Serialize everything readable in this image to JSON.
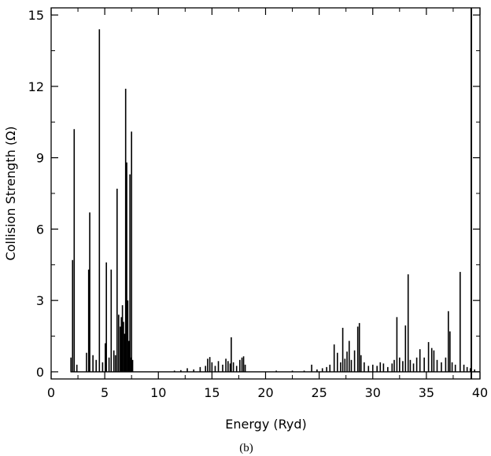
{
  "chart_data": {
    "type": "line",
    "xlabel": "Energy (Ryd)",
    "ylabel": "Collision Strength (Ω)",
    "caption": "(b)",
    "xlim": [
      0,
      40
    ],
    "ylim": [
      -0.3,
      15.3
    ],
    "xticks": [
      0,
      5,
      10,
      15,
      20,
      25,
      30,
      35,
      40
    ],
    "yticks": [
      0,
      3,
      6,
      9,
      12,
      15
    ],
    "grid": false,
    "series": [
      {
        "color": "#000000",
        "resonance_peaks": [
          [
            1.85,
            0.6
          ],
          [
            2.0,
            4.7
          ],
          [
            2.15,
            10.2
          ],
          [
            2.4,
            0.3
          ],
          [
            3.3,
            0.8
          ],
          [
            3.5,
            4.3
          ],
          [
            3.6,
            6.7
          ],
          [
            3.9,
            0.7
          ],
          [
            4.2,
            0.5
          ],
          [
            4.5,
            14.4
          ],
          [
            4.8,
            0.4
          ],
          [
            5.05,
            1.2
          ],
          [
            5.15,
            4.6
          ],
          [
            5.4,
            0.6
          ],
          [
            5.6,
            4.3
          ],
          [
            5.85,
            0.9
          ],
          [
            6.0,
            0.7
          ],
          [
            6.15,
            7.7
          ],
          [
            6.3,
            2.4
          ],
          [
            6.45,
            1.9
          ],
          [
            6.55,
            2.3
          ],
          [
            6.65,
            2.8
          ],
          [
            6.75,
            2.1
          ],
          [
            6.85,
            1.6
          ],
          [
            6.95,
            11.9
          ],
          [
            7.05,
            8.8
          ],
          [
            7.15,
            3.0
          ],
          [
            7.25,
            1.3
          ],
          [
            7.35,
            8.3
          ],
          [
            7.45,
            0.6
          ],
          [
            7.5,
            10.1
          ],
          [
            7.6,
            0.5
          ],
          [
            11.5,
            0.05
          ],
          [
            12.1,
            0.07
          ],
          [
            12.7,
            0.15
          ],
          [
            13.3,
            0.1
          ],
          [
            13.9,
            0.2
          ],
          [
            14.4,
            0.25
          ],
          [
            14.6,
            0.55
          ],
          [
            14.8,
            0.62
          ],
          [
            15.0,
            0.4
          ],
          [
            15.3,
            0.25
          ],
          [
            15.6,
            0.45
          ],
          [
            16.0,
            0.3
          ],
          [
            16.3,
            0.55
          ],
          [
            16.5,
            0.45
          ],
          [
            16.7,
            0.35
          ],
          [
            16.8,
            1.45
          ],
          [
            17.0,
            0.4
          ],
          [
            17.3,
            0.25
          ],
          [
            17.6,
            0.5
          ],
          [
            17.8,
            0.6
          ],
          [
            17.95,
            0.65
          ],
          [
            18.1,
            0.3
          ],
          [
            21.0,
            0.05
          ],
          [
            22.5,
            0.05
          ],
          [
            23.6,
            0.05
          ],
          [
            24.3,
            0.3
          ],
          [
            24.8,
            0.1
          ],
          [
            25.3,
            0.15
          ],
          [
            25.7,
            0.2
          ],
          [
            26.0,
            0.3
          ],
          [
            26.4,
            1.15
          ],
          [
            26.7,
            0.8
          ],
          [
            27.0,
            0.4
          ],
          [
            27.2,
            1.85
          ],
          [
            27.4,
            0.55
          ],
          [
            27.6,
            0.85
          ],
          [
            27.8,
            1.3
          ],
          [
            28.0,
            0.5
          ],
          [
            28.3,
            0.9
          ],
          [
            28.6,
            1.9
          ],
          [
            28.75,
            2.05
          ],
          [
            28.9,
            0.7
          ],
          [
            29.2,
            0.4
          ],
          [
            29.6,
            0.25
          ],
          [
            30.0,
            0.3
          ],
          [
            30.4,
            0.25
          ],
          [
            30.7,
            0.4
          ],
          [
            31.0,
            0.35
          ],
          [
            31.4,
            0.2
          ],
          [
            31.8,
            0.35
          ],
          [
            32.0,
            0.5
          ],
          [
            32.25,
            2.3
          ],
          [
            32.5,
            0.6
          ],
          [
            32.8,
            0.45
          ],
          [
            33.05,
            1.95
          ],
          [
            33.3,
            4.1
          ],
          [
            33.5,
            0.5
          ],
          [
            33.8,
            0.35
          ],
          [
            34.1,
            0.6
          ],
          [
            34.4,
            0.95
          ],
          [
            34.8,
            0.6
          ],
          [
            35.2,
            1.25
          ],
          [
            35.5,
            1.0
          ],
          [
            35.7,
            0.9
          ],
          [
            36.0,
            0.5
          ],
          [
            36.4,
            0.4
          ],
          [
            36.8,
            0.6
          ],
          [
            37.05,
            2.55
          ],
          [
            37.2,
            1.7
          ],
          [
            37.4,
            0.4
          ],
          [
            37.7,
            0.3
          ],
          [
            38.15,
            4.2
          ],
          [
            38.5,
            0.3
          ],
          [
            38.8,
            0.2
          ],
          [
            39.1,
            0.15
          ],
          [
            39.5,
            0.1
          ]
        ]
      }
    ]
  }
}
